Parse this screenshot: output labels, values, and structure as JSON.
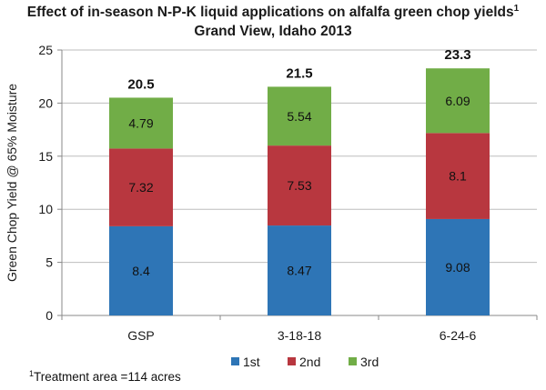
{
  "chart_data": {
    "type": "bar",
    "stacked": true,
    "title": "Effect of in-season N-P-K liquid applications on alfalfa green chop yields",
    "title_sup": "1",
    "subtitle": "Grand View, Idaho 2013",
    "xlabel": "",
    "ylabel": "Green Chop Yield @ 65% Moisture",
    "ylim": [
      0,
      25
    ],
    "yticks": [
      0,
      5,
      10,
      15,
      20,
      25
    ],
    "grid": true,
    "legend_position": "bottom",
    "categories": [
      "GSP",
      "3-18-18",
      "6-24-6"
    ],
    "series": [
      {
        "name": "1st",
        "color": "#2e75b6",
        "values": [
          8.4,
          8.47,
          9.08
        ],
        "labels": [
          "8.4",
          "8.47",
          "9.08"
        ]
      },
      {
        "name": "2nd",
        "color": "#b8373f",
        "values": [
          7.32,
          7.53,
          8.1
        ],
        "labels": [
          "7.32",
          "7.53",
          "8.1"
        ]
      },
      {
        "name": "3rd",
        "color": "#71ad47",
        "values": [
          4.79,
          5.54,
          6.09
        ],
        "labels": [
          "4.79",
          "5.54",
          "6.09"
        ]
      }
    ],
    "totals": [
      "20.5",
      "21.5",
      "23.3"
    ],
    "footnote_sup": "1",
    "footnote": "Treatment area =114 acres"
  }
}
